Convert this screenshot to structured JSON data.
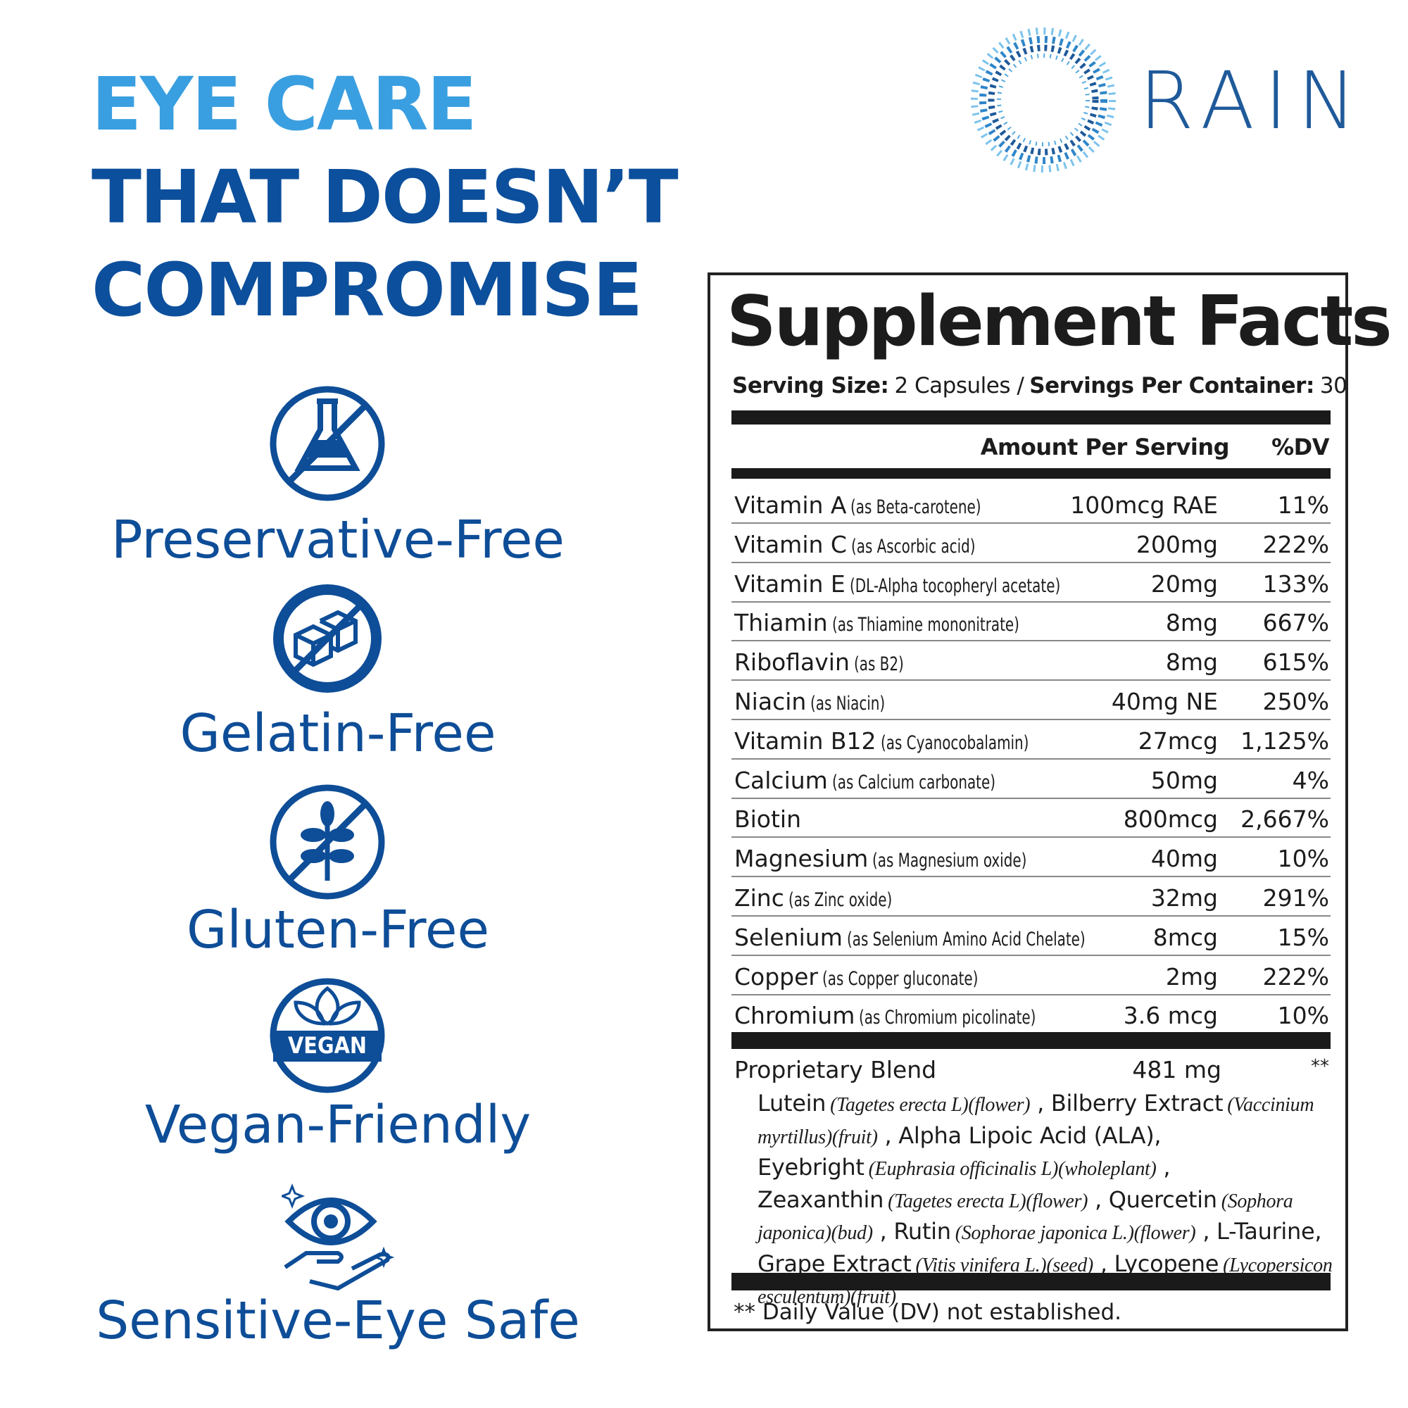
{
  "headline": {
    "line1": "EYE CARE",
    "line2": "THAT DOESN’T",
    "line3": "COMPROMISE"
  },
  "logo": {
    "text": "RAIN"
  },
  "features": [
    {
      "label": "Preservative-Free"
    },
    {
      "label": "Gelatin-Free"
    },
    {
      "label": "Gluten-Free"
    },
    {
      "label": "Vegan-Friendly",
      "badge": "VEGAN"
    },
    {
      "label": "Sensitive-Eye Safe"
    }
  ],
  "facts": {
    "title": "Supplement Facts",
    "serving": [
      {
        "text": "Serving Size:",
        "bold": true
      },
      {
        "text": "2 Capsules /",
        "bold": false
      },
      {
        "text": "Servings Per Container:",
        "bold": true
      },
      {
        "text": "30",
        "bold": false
      }
    ],
    "header": {
      "amount": "Amount Per Serving",
      "dv": "%DV"
    },
    "rows": [
      {
        "name": "Vitamin A",
        "source": "(as Beta-carotene)",
        "amount": "100mcg RAE",
        "dv": "11%"
      },
      {
        "name": "Vitamin C",
        "source": "(as Ascorbic acid)",
        "amount": "200mg",
        "dv": "222%"
      },
      {
        "name": "Vitamin E",
        "source": "(DL-Alpha tocopheryl acetate)",
        "amount": "20mg",
        "dv": "133%"
      },
      {
        "name": "Thiamin",
        "source": "(as Thiamine mononitrate)",
        "amount": "8mg",
        "dv": "667%"
      },
      {
        "name": "Riboflavin",
        "source": "(as B2)",
        "amount": "8mg",
        "dv": "615%"
      },
      {
        "name": "Niacin",
        "source": "(as Niacin)",
        "amount": "40mg NE",
        "dv": "250%"
      },
      {
        "name": "Vitamin B12",
        "source": "(as Cyanocobalamin)",
        "amount": "27mcg",
        "dv": "1,125%"
      },
      {
        "name": "Calcium",
        "source": "(as Calcium carbonate)",
        "amount": "50mg",
        "dv": "4%"
      },
      {
        "name": "Biotin",
        "source": "",
        "amount": "800mcg",
        "dv": "2,667%"
      },
      {
        "name": "Magnesium",
        "source": "(as Magnesium oxide)",
        "amount": "40mg",
        "dv": "10%"
      },
      {
        "name": "Zinc",
        "source": "(as Zinc oxide)",
        "amount": "32mg",
        "dv": "291%"
      },
      {
        "name": "Selenium",
        "source": "(as Selenium Amino Acid Chelate)",
        "amount": "8mcg",
        "dv": "15%"
      },
      {
        "name": "Copper",
        "source": "(as Copper gluconate)",
        "amount": "2mg",
        "dv": "222%"
      },
      {
        "name": "Chromium",
        "source": "(as Chromium picolinate)",
        "amount": "3.6 mcg",
        "dv": "10%"
      }
    ],
    "blend": {
      "name": "Proprietary Blend",
      "amount": "481 mg",
      "dv": "**",
      "ingredients": [
        {
          "text": "Lutein",
          "italic": false
        },
        {
          "text": "(Tagetes erecta L)(flower)",
          "italic": true
        },
        {
          "text": ", Bilberry Extract",
          "italic": false
        },
        {
          "text": "(Vaccinium myrtillus)(fruit)",
          "italic": true
        },
        {
          "text": ", Alpha Lipoic Acid (ALA), Eyebright",
          "italic": false
        },
        {
          "text": "(Euphrasia officinalis L)(wholeplant)",
          "italic": true
        },
        {
          "text": ", Zeaxanthin",
          "italic": false
        },
        {
          "text": "(Tagetes erecta L)(flower)",
          "italic": true
        },
        {
          "text": ", Quercetin",
          "italic": false
        },
        {
          "text": "(Sophora japonica)(bud)",
          "italic": true
        },
        {
          "text": ", Rutin",
          "italic": false
        },
        {
          "text": "(Sophorae japonica L.)(flower)",
          "italic": true
        },
        {
          "text": ", L-Taurine, Grape Extract",
          "italic": false
        },
        {
          "text": "(Vitis vinifera L.)(seed)",
          "italic": true
        },
        {
          "text": ", Lycopene",
          "italic": false
        },
        {
          "text": "(Lycopersicon esculentum)(fruit)",
          "italic": true
        }
      ]
    },
    "footnote": "** Daily Value (DV) not established."
  }
}
